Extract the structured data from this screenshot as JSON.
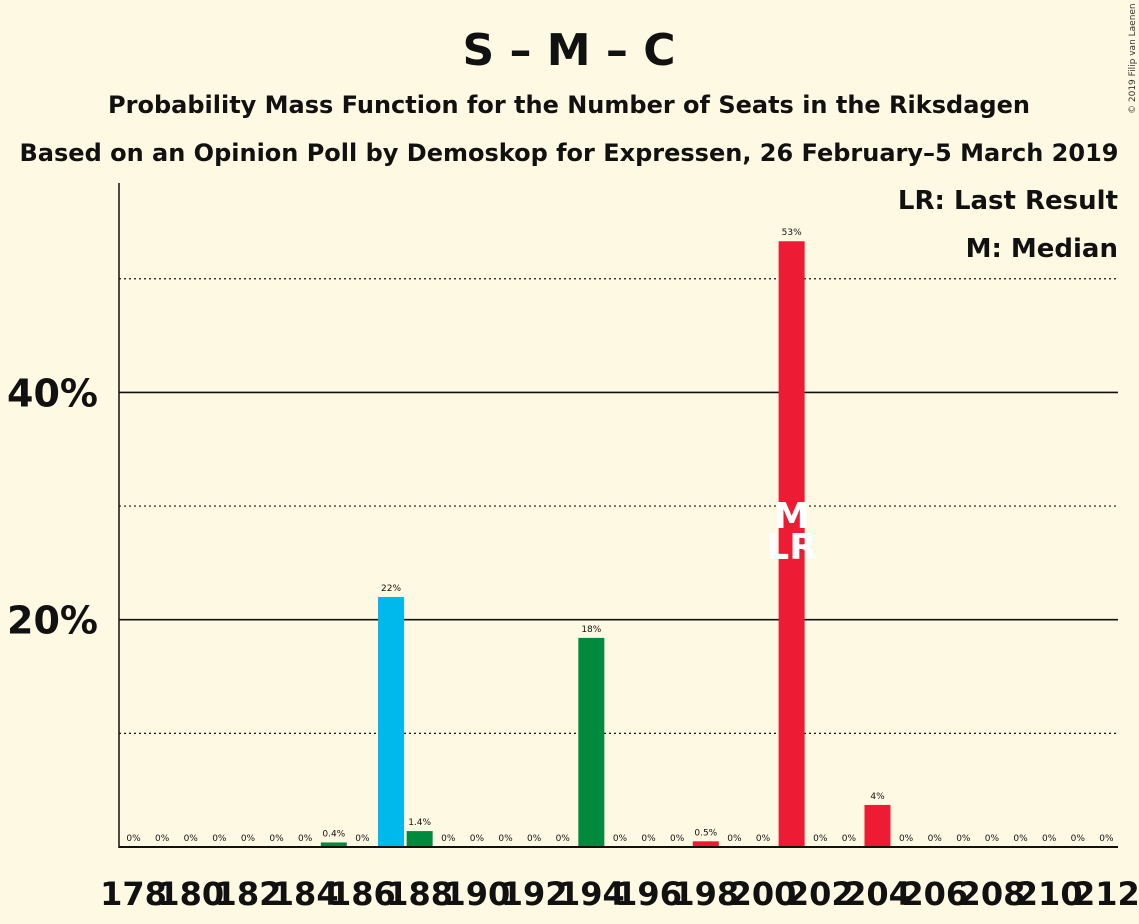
{
  "chart_data": {
    "type": "bar",
    "title": "S – M – C",
    "subtitle": "Probability Mass Function for the Number of Seats in the Riksdagen",
    "subtitle2": "Based on an Opinion Poll by Demoskop for Expressen, 26 February–5 March 2019",
    "copyright": "© 2019 Filip van Laenen",
    "legend": {
      "last_result": "LR: Last Result",
      "median": "M: Median",
      "placement": "top-right"
    },
    "ylim": [
      0,
      58
    ],
    "major_ticks": [
      20,
      40
    ],
    "major_tick_labels": [
      "20%",
      "40%"
    ],
    "minor_gridlines": [
      10,
      30,
      50
    ],
    "x_tick_labels": [
      "178",
      "180",
      "182",
      "184",
      "186",
      "188",
      "190",
      "192",
      "194",
      "196",
      "198",
      "200",
      "202",
      "204",
      "206",
      "208",
      "210",
      "212"
    ],
    "x": [
      178,
      179,
      180,
      181,
      182,
      183,
      184,
      185,
      186,
      187,
      188,
      189,
      190,
      191,
      192,
      193,
      194,
      195,
      196,
      197,
      198,
      199,
      200,
      201,
      202,
      203,
      204,
      205,
      206,
      207,
      208,
      209,
      210,
      211,
      212
    ],
    "values": [
      0,
      0,
      0,
      0,
      0,
      0,
      0,
      0.4,
      0,
      22,
      1.4,
      0,
      0,
      0,
      0,
      0,
      18.4,
      0,
      0,
      0,
      0.5,
      0,
      0,
      53.3,
      0,
      0,
      3.7,
      0,
      0,
      0,
      0,
      0,
      0,
      0,
      0
    ],
    "value_labels": [
      "0%",
      "0%",
      "0%",
      "0%",
      "0%",
      "0%",
      "0%",
      "0.4%",
      "0%",
      "22%",
      "1.4%",
      "0%",
      "0%",
      "0%",
      "0%",
      "0%",
      "18%",
      "0%",
      "0%",
      "0%",
      "0.5%",
      "0%",
      "0%",
      "53%",
      "0%",
      "0%",
      "4%",
      "0%",
      "0%",
      "0%",
      "0%",
      "0%",
      "0%",
      "0%",
      "0%"
    ],
    "bar_colors": [
      "#ed1b34",
      "#ed1b34",
      "#ed1b34",
      "#ed1b34",
      "#ed1b34",
      "#ed1b34",
      "#ed1b34",
      "#008a3d",
      "#ed1b34",
      "#00b9ec",
      "#008a3d",
      "#ed1b34",
      "#ed1b34",
      "#ed1b34",
      "#ed1b34",
      "#ed1b34",
      "#008a3d",
      "#ed1b34",
      "#ed1b34",
      "#ed1b34",
      "#ed1b34",
      "#ed1b34",
      "#ed1b34",
      "#ed1b34",
      "#ed1b34",
      "#ed1b34",
      "#ed1b34",
      "#ed1b34",
      "#ed1b34",
      "#ed1b34",
      "#ed1b34",
      "#ed1b34",
      "#ed1b34",
      "#ed1b34",
      "#ed1b34"
    ],
    "median_seat": 201,
    "last_result_seat": 201,
    "median_marker": "M",
    "last_result_marker": "LR",
    "grid": true
  },
  "colors": {
    "background": "#fef9e3",
    "red": "#ed1b34",
    "green": "#008a3d",
    "blue": "#00b9ec"
  }
}
